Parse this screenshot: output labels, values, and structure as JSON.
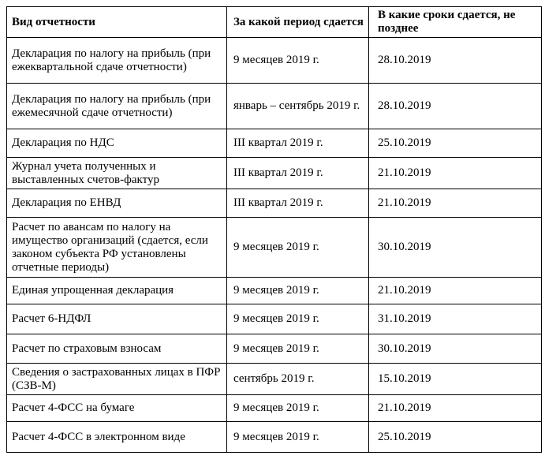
{
  "table": {
    "headers": {
      "type": "Вид отчетности",
      "period": "За какой период сдается",
      "deadline": "В какие сроки сдается, не позднее"
    },
    "rows": [
      {
        "type": "Декларация по налогу на прибыль (при ежеквартальной сдаче отчетности)",
        "period": "9 месяцев 2019 г.",
        "deadline": "28.10.2019"
      },
      {
        "type": "Декларация по налогу на прибыль (при ежемесячной сдаче отчетности)",
        "period": "январь – сентябрь 2019 г.",
        "deadline": "28.10.2019"
      },
      {
        "type": "Декларация по НДС",
        "period": "III квартал 2019 г.",
        "deadline": "25.10.2019"
      },
      {
        "type": "Журнал учета полученных и выставленных счетов-фактур",
        "period": "III квартал 2019 г.",
        "deadline": "21.10.2019"
      },
      {
        "type": "Декларация по ЕНВД",
        "period": "III квартал 2019 г.",
        "deadline": "21.10.2019"
      },
      {
        "type": "Расчет по авансам по налогу на имущество организаций (сдается, если законом субъекта РФ установлены отчетные периоды)",
        "period": "9 месяцев 2019 г.",
        "deadline": "30.10.2019"
      },
      {
        "type": "Единая упрощенная декларация",
        "period": "9 месяцев 2019 г.",
        "deadline": "21.10.2019"
      },
      {
        "type": "Расчет 6-НДФЛ",
        "period": "9 месяцев 2019 г.",
        "deadline": "31.10.2019"
      },
      {
        "type": "Расчет по страховым взносам",
        "period": "9 месяцев 2019 г.",
        "deadline": "30.10.2019"
      },
      {
        "type": "Сведения о застрахованных лицах в ПФР (СЗВ-М)",
        "period": "сентябрь 2019 г.",
        "deadline": "15.10.2019"
      },
      {
        "type": "Расчет 4-ФСС на бумаге",
        "period": "9 месяцев 2019 г.",
        "deadline": "21.10.2019"
      },
      {
        "type": "Расчет 4-ФСС в электронном виде",
        "period": "9 месяцев 2019 г.",
        "deadline": "25.10.2019"
      }
    ]
  }
}
